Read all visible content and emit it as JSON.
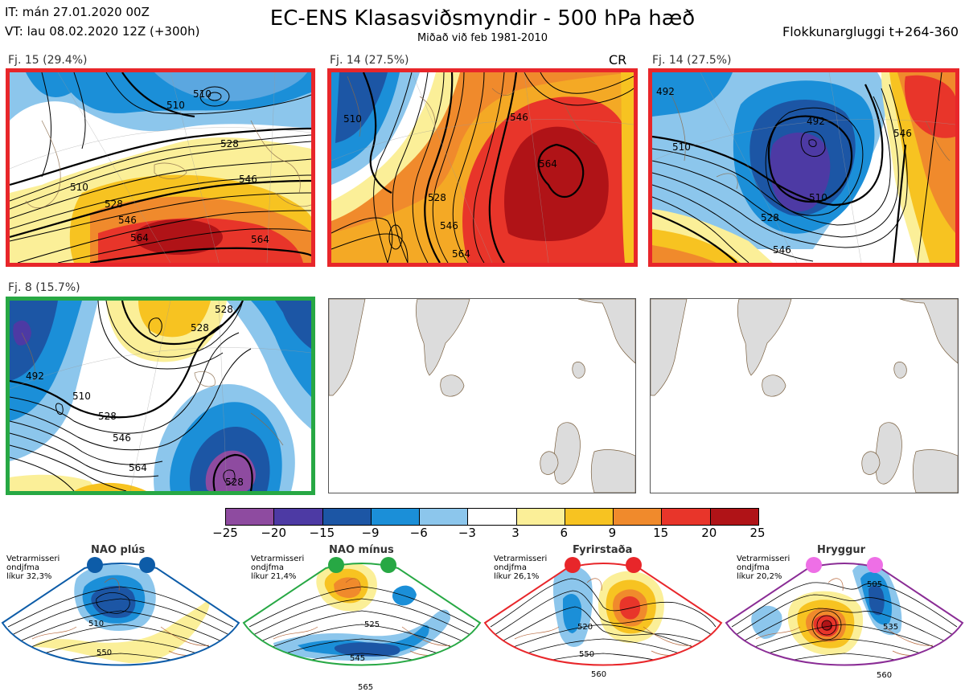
{
  "header": {
    "initial_time": "IT: mán 27.01.2020 00Z",
    "valid_time": "VT: lau 08.02.2020 12Z  (+300h)",
    "title": "EC-ENS Klasasviðsmyndir - 500 hPa hæð",
    "subtitle": "Miðað við feb 1981-2010",
    "window": "Flokkunargluggi t+264-360"
  },
  "panels": [
    {
      "label": "Fj. 15 (29.4%)",
      "frame": "red",
      "contours": [
        "510",
        "510",
        "528",
        "546",
        "510",
        "528",
        "546",
        "564",
        "564"
      ]
    },
    {
      "label": "Fj. 14 (27.5%)",
      "frame": "red",
      "tag": "CR",
      "contours": [
        "510",
        "528",
        "546",
        "564",
        "546",
        "564"
      ]
    },
    {
      "label": "Fj. 14 (27.5%)",
      "frame": "red",
      "contours": [
        "492",
        "492",
        "510",
        "510",
        "528",
        "546",
        "546"
      ]
    },
    {
      "label": "Fj. 8 (15.7%)",
      "frame": "green",
      "contours": [
        "528",
        "528",
        "492",
        "510",
        "528",
        "546",
        "564",
        "528"
      ]
    },
    {
      "label": "",
      "frame": "none",
      "contours": []
    },
    {
      "label": "",
      "frame": "none",
      "contours": []
    }
  ],
  "colorbar": {
    "ticks": [
      "−25",
      "−20",
      "−15",
      "−9",
      "−6",
      "−3",
      "3",
      "6",
      "9",
      "15",
      "20",
      "25"
    ],
    "colors": [
      "#8e4ba0",
      "#4d3aa4",
      "#1c56a5",
      "#1b8fd8",
      "#8cc6ec",
      "#ffffff",
      "#fbef98",
      "#f7c321",
      "#f08a2c",
      "#e8352a",
      "#b01317"
    ]
  },
  "regimes": [
    {
      "name": "NAO plús",
      "info": [
        "Vetrarmisseri",
        "ondjfma",
        "líkur 32,3%"
      ],
      "color": "#0d5ca8",
      "dot": "#0d5ca8",
      "contours": [
        "510",
        "550"
      ]
    },
    {
      "name": "NAO mínus",
      "info": [
        "Vetrarmisseri",
        "ondjfma",
        "líkur 21,4%"
      ],
      "color": "#27a844",
      "dot": "#27a844",
      "contours": [
        "525",
        "545",
        "565"
      ]
    },
    {
      "name": "Fyrirstaða",
      "info": [
        "Vetrarmisseri",
        "ondjfma",
        "líkur 26,1%"
      ],
      "color": "#e8262a",
      "dot": "#e8262a",
      "contours": [
        "520",
        "550",
        "560"
      ]
    },
    {
      "name": "Hryggur",
      "info": [
        "Vetrarmisseri",
        "ondjfma",
        "líkur 20,2%"
      ],
      "color": "#8a2c95",
      "dot": "#ee6fe6",
      "contours": [
        "505",
        "535",
        "560"
      ]
    }
  ]
}
